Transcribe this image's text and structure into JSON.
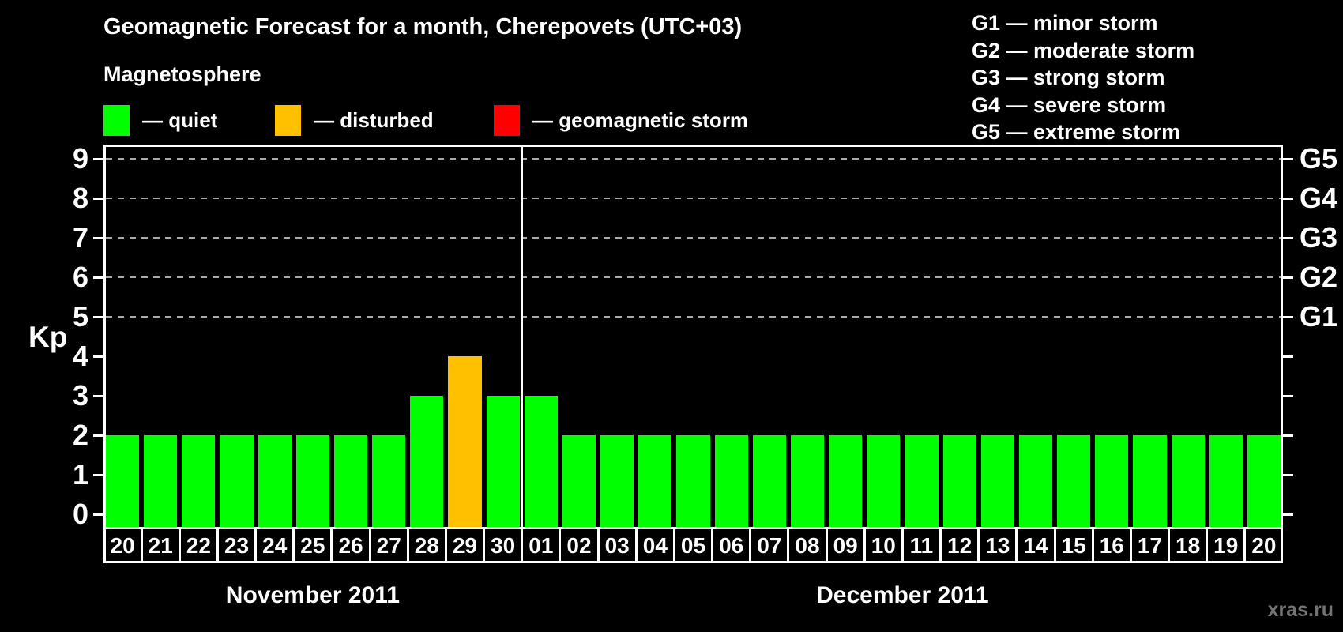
{
  "header": {
    "title": "Geomagnetic Forecast for a month, Cherepovets (UTC+03)",
    "subtitle": "Magnetosphere"
  },
  "legend": [
    {
      "name": "quiet",
      "label": "— quiet"
    },
    {
      "name": "disturbed",
      "label": "— disturbed"
    },
    {
      "name": "storm",
      "label": "— geomagnetic storm"
    }
  ],
  "storm_scale": [
    "G1 — minor storm",
    "G2 — moderate storm",
    "G3 — strong storm",
    "G4 — severe storm",
    "G5 — extreme storm"
  ],
  "watermark": "xras.ru",
  "colors": {
    "background": "#000000",
    "text": "#ffffff",
    "grid": "#aaaaaa",
    "axis": "#ffffff",
    "quiet": "#00ff00",
    "disturbed": "#ffc000",
    "storm": "#ff0000",
    "watermark": "#737373"
  },
  "chart_data": {
    "type": "bar",
    "title": "Geomagnetic Forecast for a month, Cherepovets (UTC+03)",
    "xlabel": "",
    "ylabel": "Kp",
    "ylim": [
      0,
      9
    ],
    "y_ticks": [
      0,
      1,
      2,
      3,
      4,
      5,
      6,
      7,
      8,
      9
    ],
    "grid_levels": [
      5,
      6,
      7,
      8,
      9
    ],
    "grid_style": "dashed",
    "legend_position": "top",
    "right_axis": [
      {
        "value": 5,
        "label": "G1"
      },
      {
        "value": 6,
        "label": "G2"
      },
      {
        "value": 7,
        "label": "G3"
      },
      {
        "value": 8,
        "label": "G4"
      },
      {
        "value": 9,
        "label": "G5"
      }
    ],
    "groups": [
      {
        "month": "November 2011",
        "days": [
          "20",
          "21",
          "22",
          "23",
          "24",
          "25",
          "26",
          "27",
          "28",
          "29",
          "30"
        ],
        "values": [
          2,
          2,
          2,
          2,
          2,
          2,
          2,
          2,
          3,
          4,
          3
        ],
        "states": [
          "quiet",
          "quiet",
          "quiet",
          "quiet",
          "quiet",
          "quiet",
          "quiet",
          "quiet",
          "quiet",
          "disturbed",
          "quiet"
        ]
      },
      {
        "month": "December 2011",
        "days": [
          "01",
          "02",
          "03",
          "04",
          "05",
          "06",
          "07",
          "08",
          "09",
          "10",
          "11",
          "12",
          "13",
          "14",
          "15",
          "16",
          "17",
          "18",
          "19",
          "20"
        ],
        "values": [
          3,
          2,
          2,
          2,
          2,
          2,
          2,
          2,
          2,
          2,
          2,
          2,
          2,
          2,
          2,
          2,
          2,
          2,
          2,
          2
        ],
        "states": [
          "quiet",
          "quiet",
          "quiet",
          "quiet",
          "quiet",
          "quiet",
          "quiet",
          "quiet",
          "quiet",
          "quiet",
          "quiet",
          "quiet",
          "quiet",
          "quiet",
          "quiet",
          "quiet",
          "quiet",
          "quiet",
          "quiet",
          "quiet"
        ]
      }
    ]
  }
}
